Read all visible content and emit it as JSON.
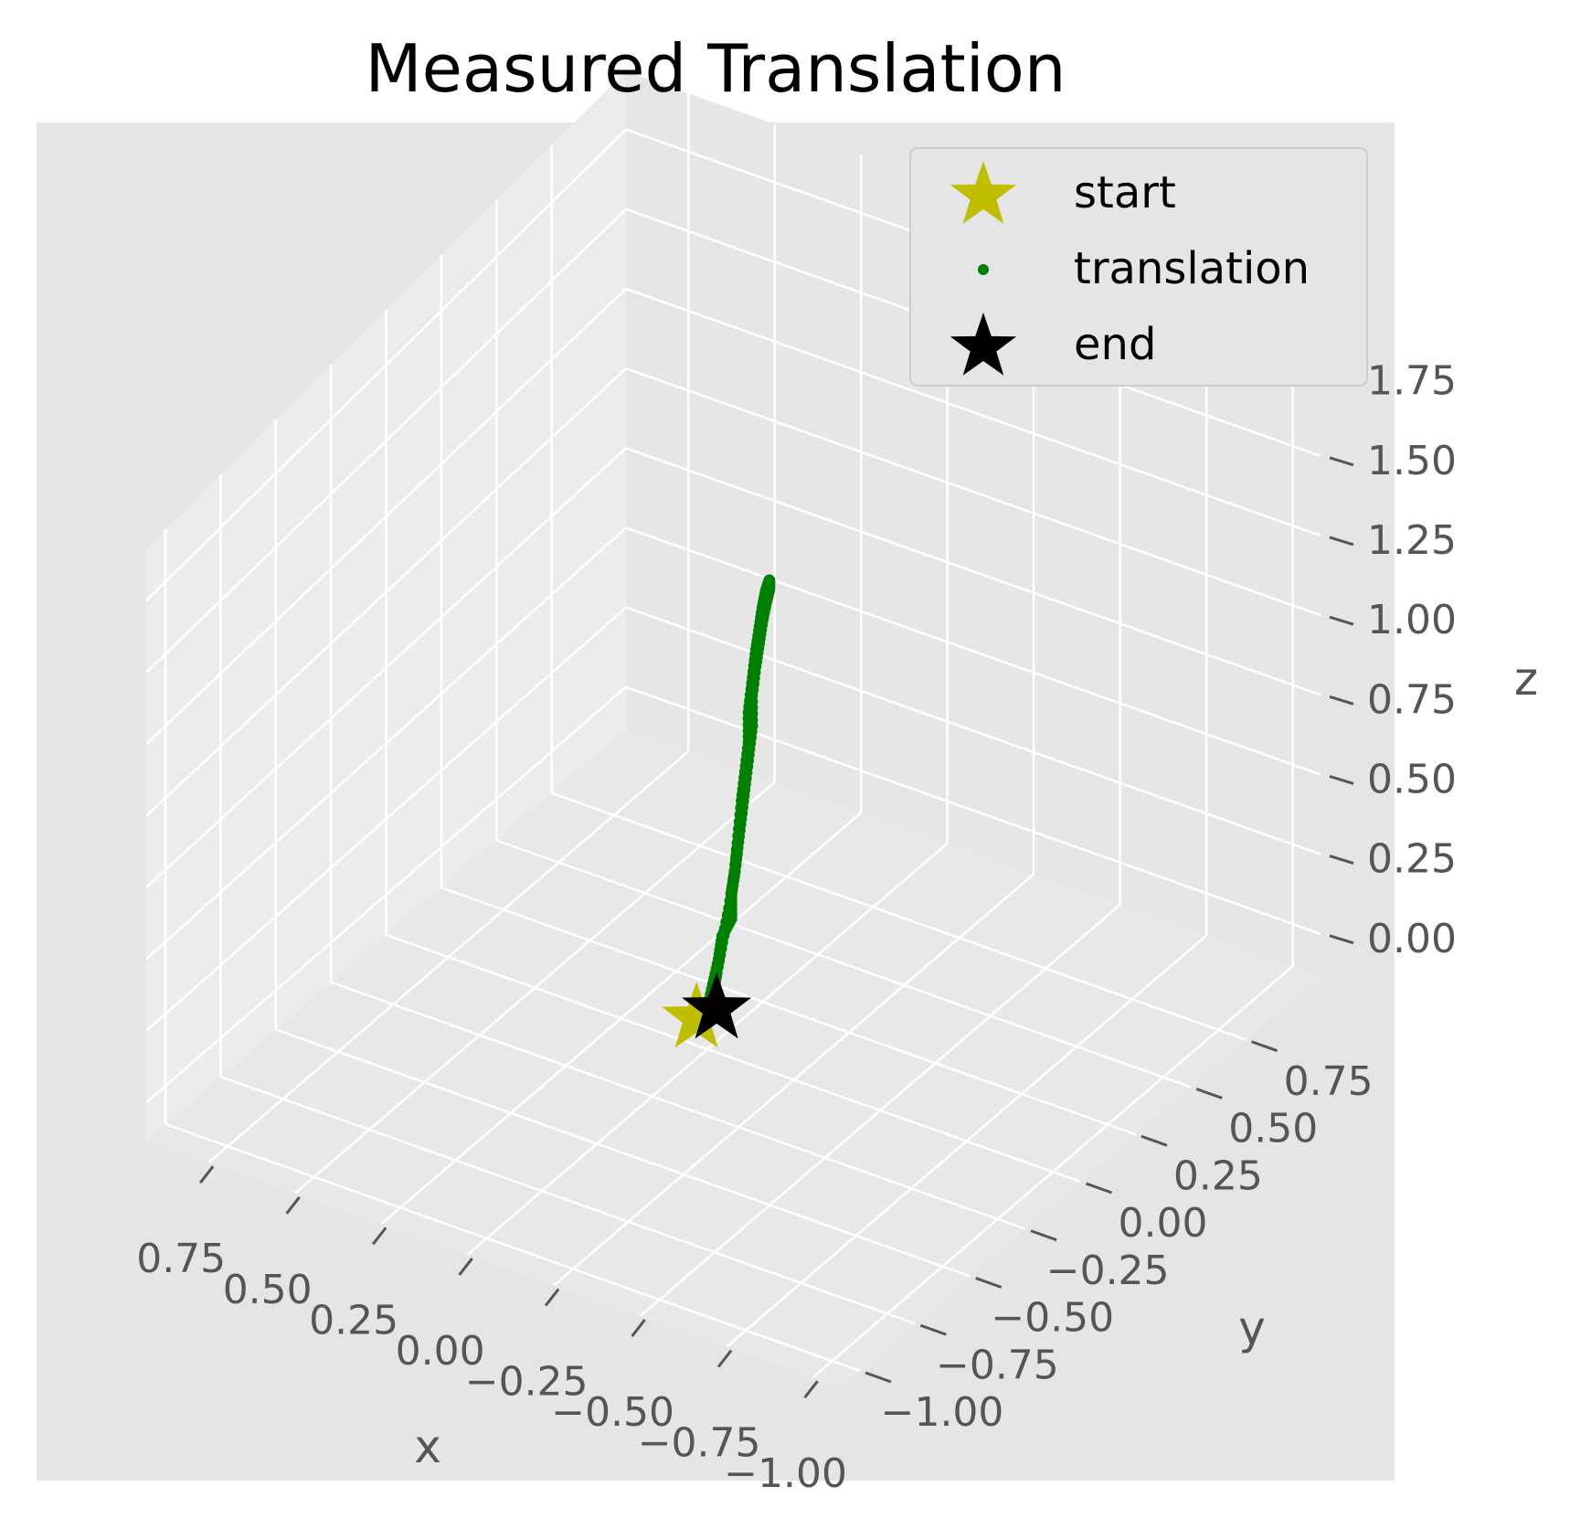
{
  "chart_data": {
    "type": "scatter",
    "projection": "3d",
    "title": "Measured Translation",
    "xlabel": "x",
    "ylabel": "y",
    "zlabel": "z",
    "xlim": [
      -1.0,
      0.85
    ],
    "ylim": [
      -1.0,
      1.0
    ],
    "zlim": [
      -0.05,
      1.85
    ],
    "xticks": [
      -1.0,
      -0.75,
      -0.5,
      -0.25,
      0.0,
      0.25,
      0.5,
      0.75
    ],
    "yticks": [
      -1.0,
      -0.75,
      -0.5,
      -0.25,
      0.0,
      0.25,
      0.5,
      0.75
    ],
    "zticks": [
      0.0,
      0.25,
      0.5,
      0.75,
      1.0,
      1.25,
      1.5,
      1.75
    ],
    "xtick_labels": [
      "−1.00",
      "−0.75",
      "−0.50",
      "−0.25",
      "0.00",
      "0.25",
      "0.50",
      "0.75"
    ],
    "ytick_labels": [
      "−1.00",
      "−0.75",
      "−0.50",
      "−0.25",
      "0.00",
      "0.25",
      "0.50",
      "0.75"
    ],
    "ztick_labels": [
      "0.00",
      "0.25",
      "0.50",
      "0.75",
      "1.00",
      "1.25",
      "1.50",
      "1.75"
    ],
    "grid": true,
    "background": "#e5e5e5",
    "legend_position": "top-right",
    "legend": [
      "start",
      "translation",
      "end"
    ],
    "series": [
      {
        "name": "start",
        "marker": "star",
        "color": "#bfbf00",
        "points": [
          [
            0.0,
            0.0,
            0.0
          ]
        ]
      },
      {
        "name": "translation",
        "marker": "dot",
        "color": "#008000",
        "points": [
          [
            0.0,
            0.0,
            0.0
          ],
          [
            -0.01,
            0.01,
            0.08
          ],
          [
            -0.02,
            0.02,
            0.16
          ],
          [
            -0.03,
            0.02,
            0.24
          ],
          [
            -0.05,
            0.03,
            0.3
          ],
          [
            -0.05,
            0.03,
            0.38
          ],
          [
            -0.06,
            0.03,
            0.46
          ],
          [
            -0.07,
            0.03,
            0.56
          ],
          [
            -0.08,
            0.03,
            0.66
          ],
          [
            -0.09,
            0.03,
            0.76
          ],
          [
            -0.1,
            0.03,
            0.86
          ],
          [
            -0.11,
            0.03,
            0.96
          ],
          [
            -0.11,
            0.03,
            1.06
          ],
          [
            -0.12,
            0.03,
            1.16
          ],
          [
            -0.13,
            0.03,
            1.24
          ],
          [
            -0.14,
            0.03,
            1.32
          ],
          [
            -0.15,
            0.03,
            1.38
          ],
          [
            -0.16,
            0.03,
            1.43
          ],
          [
            -0.16,
            0.03,
            1.46
          ],
          [
            -0.15,
            0.03,
            1.42
          ],
          [
            -0.14,
            0.03,
            1.36
          ],
          [
            -0.13,
            0.03,
            1.28
          ],
          [
            -0.12,
            0.03,
            1.2
          ],
          [
            -0.11,
            0.03,
            1.1
          ],
          [
            -0.1,
            0.03,
            1.0
          ],
          [
            -0.1,
            0.03,
            0.9
          ],
          [
            -0.09,
            0.03,
            0.8
          ],
          [
            -0.08,
            0.03,
            0.7
          ],
          [
            -0.07,
            0.03,
            0.58
          ],
          [
            -0.06,
            0.03,
            0.46
          ],
          [
            -0.05,
            0.02,
            0.34
          ],
          [
            -0.03,
            0.02,
            0.22
          ],
          [
            -0.02,
            0.01,
            0.12
          ],
          [
            -0.01,
            0.01,
            0.05
          ],
          [
            0.0,
            0.0,
            0.0
          ]
        ]
      },
      {
        "name": "end",
        "marker": "star",
        "color": "#000000",
        "points": [
          [
            0.0,
            0.0,
            0.0
          ]
        ]
      }
    ]
  }
}
